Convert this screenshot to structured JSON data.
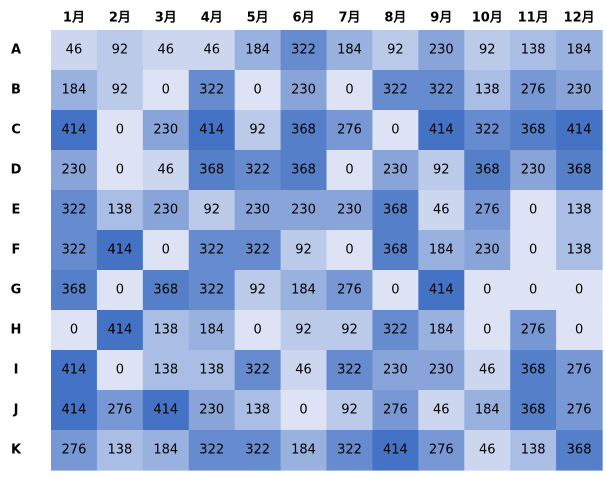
{
  "chart_data": {
    "type": "heatmap",
    "columns": [
      "1月",
      "2月",
      "3月",
      "4月",
      "5月",
      "6月",
      "7月",
      "8月",
      "9月",
      "10月",
      "11月",
      "12月"
    ],
    "rows": [
      "A",
      "B",
      "C",
      "D",
      "E",
      "F",
      "G",
      "H",
      "I",
      "J",
      "K"
    ],
    "values": [
      [
        46,
        92,
        46,
        46,
        184,
        322,
        184,
        92,
        230,
        92,
        138,
        184
      ],
      [
        184,
        92,
        0,
        322,
        0,
        230,
        0,
        322,
        322,
        138,
        276,
        230
      ],
      [
        414,
        0,
        230,
        414,
        92,
        368,
        276,
        0,
        414,
        322,
        368,
        414
      ],
      [
        230,
        0,
        46,
        368,
        322,
        368,
        0,
        230,
        92,
        368,
        230,
        368
      ],
      [
        322,
        138,
        230,
        92,
        230,
        230,
        230,
        368,
        46,
        276,
        0,
        138
      ],
      [
        322,
        414,
        0,
        322,
        322,
        92,
        0,
        368,
        184,
        230,
        0,
        138
      ],
      [
        368,
        0,
        368,
        322,
        92,
        184,
        276,
        0,
        414,
        0,
        0,
        0
      ],
      [
        0,
        414,
        138,
        184,
        0,
        92,
        92,
        322,
        184,
        0,
        276,
        0
      ],
      [
        414,
        0,
        138,
        138,
        322,
        46,
        322,
        230,
        230,
        46,
        368,
        276
      ],
      [
        414,
        276,
        414,
        230,
        138,
        0,
        92,
        276,
        46,
        184,
        368,
        276
      ],
      [
        276,
        138,
        184,
        322,
        322,
        184,
        322,
        414,
        276,
        46,
        138,
        368
      ]
    ],
    "value_range": [
      0,
      414
    ],
    "color_low": "#dde3f4",
    "color_high": "#4472c4",
    "legend": "none",
    "grid": false
  }
}
